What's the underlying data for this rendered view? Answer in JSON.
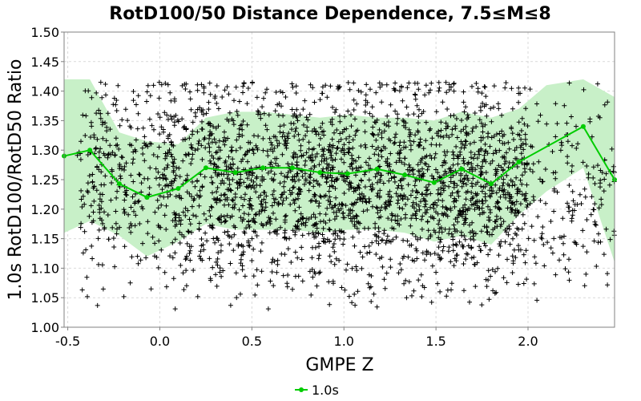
{
  "chart_data": {
    "type": "scatter",
    "title": "RotD100/50 Distance Dependence, 7.5≤M≤8",
    "xlabel": "GMPE Z",
    "ylabel": "1.0s RotD100/RotD50 Ratio",
    "xlim": [
      -0.52,
      2.47
    ],
    "ylim": [
      1.0,
      1.5
    ],
    "xticks": [
      -0.5,
      0.0,
      0.5,
      1.0,
      1.5,
      2.0
    ],
    "xtick_labels": [
      "-0.5",
      "0.0",
      "0.5",
      "1.0",
      "1.5",
      "2.0"
    ],
    "yticks": [
      1.0,
      1.05,
      1.1,
      1.15,
      1.2,
      1.25,
      1.3,
      1.35,
      1.4,
      1.45,
      1.5
    ],
    "ytick_labels": [
      "1.00",
      "1.05",
      "1.10",
      "1.15",
      "1.20",
      "1.25",
      "1.30",
      "1.35",
      "1.40",
      "1.45",
      "1.50"
    ],
    "grid": true,
    "legend_position": "bottom-center",
    "colors": {
      "line": "#00cc00",
      "band": "#c8f0c8",
      "points": "#000000"
    },
    "series": [
      {
        "name": "1.0s",
        "kind": "line",
        "x": [
          -0.52,
          -0.38,
          -0.22,
          -0.07,
          0.1,
          0.25,
          0.41,
          0.56,
          0.72,
          0.87,
          1.02,
          1.18,
          1.33,
          1.49,
          1.64,
          1.8,
          1.95,
          2.3,
          2.47
        ],
        "y": [
          1.29,
          1.3,
          1.243,
          1.22,
          1.235,
          1.27,
          1.262,
          1.27,
          1.27,
          1.262,
          1.26,
          1.268,
          1.258,
          1.245,
          1.268,
          1.243,
          1.28,
          1.34,
          1.25
        ]
      },
      {
        "kind": "band",
        "x": [
          -0.52,
          -0.38,
          -0.22,
          -0.07,
          0.1,
          0.25,
          0.41,
          0.56,
          0.72,
          0.87,
          1.02,
          1.18,
          1.33,
          1.49,
          1.64,
          1.8,
          1.95,
          2.1,
          2.3,
          2.47
        ],
        "upper": [
          1.42,
          1.42,
          1.33,
          1.315,
          1.31,
          1.355,
          1.365,
          1.365,
          1.36,
          1.355,
          1.36,
          1.355,
          1.355,
          1.35,
          1.365,
          1.355,
          1.37,
          1.41,
          1.42,
          1.39
        ],
        "lower": [
          1.16,
          1.18,
          1.155,
          1.12,
          1.145,
          1.175,
          1.165,
          1.165,
          1.165,
          1.16,
          1.165,
          1.165,
          1.16,
          1.145,
          1.155,
          1.14,
          1.19,
          1.23,
          1.27,
          1.11
        ]
      },
      {
        "kind": "scatter",
        "count": 2700,
        "x_range": [
          -0.45,
          2.47
        ],
        "y_range": [
          1.03,
          1.415
        ]
      }
    ]
  }
}
